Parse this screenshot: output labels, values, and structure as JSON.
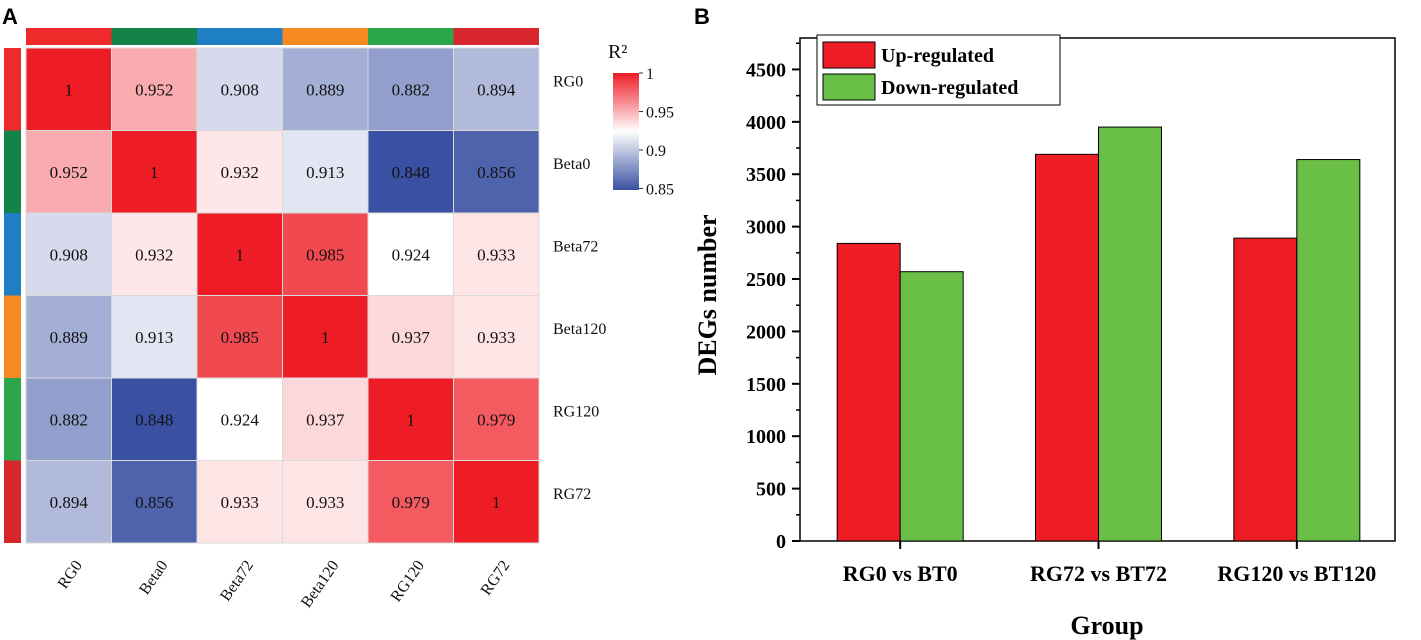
{
  "panel_labels": {
    "a": "A",
    "b": "B"
  },
  "chart_data": [
    {
      "type": "heatmap",
      "legend_title": "R²",
      "row_labels": [
        "RG0",
        "Beta0",
        "Beta72",
        "Beta120",
        "RG120",
        "RG72"
      ],
      "col_labels": [
        "RG0",
        "Beta0",
        "Beta72",
        "Beta120",
        "RG120",
        "RG72"
      ],
      "values": [
        [
          "1",
          "0.952",
          "0.908",
          "0.889",
          "0.882",
          "0.894"
        ],
        [
          "0.952",
          "1",
          "0.932",
          "0.913",
          "0.848",
          "0.856"
        ],
        [
          "0.908",
          "0.932",
          "1",
          "0.985",
          "0.924",
          "0.933"
        ],
        [
          "0.889",
          "0.913",
          "0.985",
          "1",
          "0.937",
          "0.933"
        ],
        [
          "0.882",
          "0.848",
          "0.924",
          "0.937",
          "1",
          "0.979"
        ],
        [
          "0.894",
          "0.856",
          "0.933",
          "0.933",
          "0.979",
          "1"
        ]
      ],
      "color_range": [
        0.848,
        1
      ],
      "color_stops": {
        "low": "#3a51a3",
        "mid": "#ffffff",
        "high": "#ee1c25"
      },
      "legend_ticks": [
        "1",
        "0.95",
        "0.9",
        "0.85"
      ],
      "col_annotation_colors": [
        "#ee2a2a",
        "#13834a",
        "#1f7fc4",
        "#f58a23",
        "#2ca64a",
        "#d7272c"
      ],
      "row_annotation_colors": [
        "#ee2a2a",
        "#13834a",
        "#1f7fc4",
        "#f58a23",
        "#2ca64a",
        "#d7272c"
      ]
    },
    {
      "type": "bar",
      "categories": [
        "RG0 vs BT0",
        "RG72 vs BT72",
        "RG120 vs BT120"
      ],
      "series": [
        {
          "name": "Up-regulated",
          "color": "#ee1c25",
          "values": [
            2840,
            3690,
            2890
          ]
        },
        {
          "name": "Down-regulated",
          "color": "#6abf47",
          "values": [
            2570,
            3950,
            3640
          ]
        }
      ],
      "xlabel": "Group",
      "ylabel": "DEGs number",
      "ylim": [
        0,
        4800
      ],
      "yticks": [
        "0",
        "500",
        "1000",
        "1500",
        "2000",
        "2500",
        "3000",
        "3500",
        "4000",
        "4500"
      ],
      "legend_position": "top-left"
    }
  ]
}
